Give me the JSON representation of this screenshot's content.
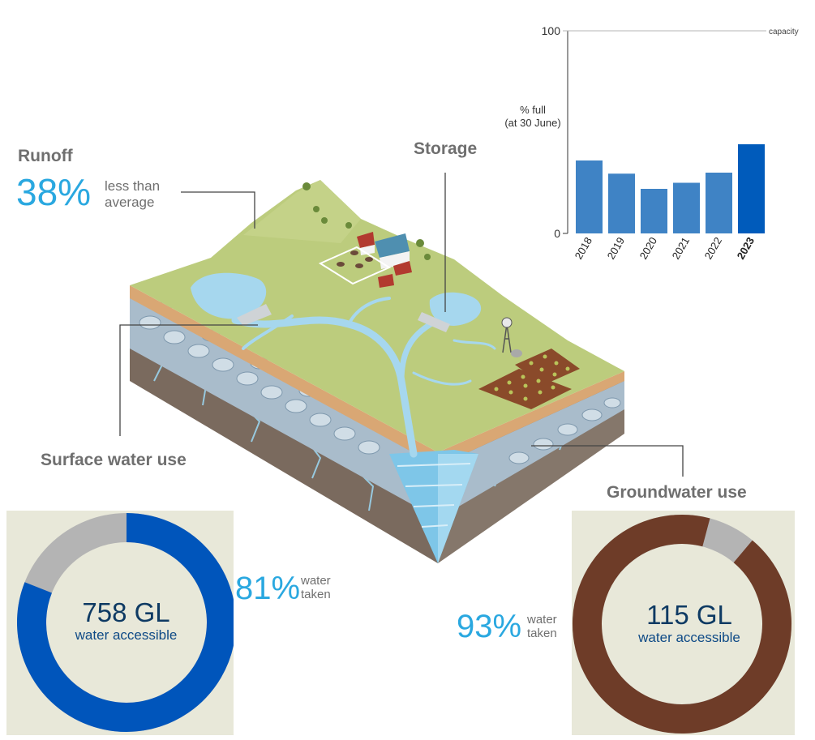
{
  "runoff": {
    "heading": "Runoff",
    "pct": "38%",
    "note_line1": "less than",
    "note_line2": "average"
  },
  "storage": {
    "heading": "Storage"
  },
  "surface": {
    "heading": "Surface water use",
    "pct": "81%",
    "note_line1": "water",
    "note_line2": "taken",
    "volume": "758 GL",
    "sub": "water accessible",
    "taken_fraction": 0.81
  },
  "ground": {
    "heading": "Groundwater use",
    "pct": "93%",
    "note_line1": "water",
    "note_line2": "taken",
    "volume": "115 GL",
    "sub": "water accessible",
    "taken_fraction": 0.93
  },
  "colors": {
    "accent": "#2aa8e0",
    "surface_donut": "#0055bb",
    "ground_donut": "#6e3c28",
    "grey": "#b4b4b4",
    "bar": "#3f83c5",
    "bar_highlight": "#005bbb"
  },
  "chart_data": {
    "type": "bar",
    "ylabel_line1": "% full",
    "ylabel_line2": "(at 30 June)",
    "reference_label": "capacity",
    "yticks": [
      "100",
      "0"
    ],
    "ylim": [
      0,
      100
    ],
    "categories": [
      "2018",
      "2019",
      "2020",
      "2021",
      "2022",
      "2023"
    ],
    "values": [
      36,
      29.5,
      22,
      25,
      30,
      44
    ],
    "highlight": "2023"
  }
}
